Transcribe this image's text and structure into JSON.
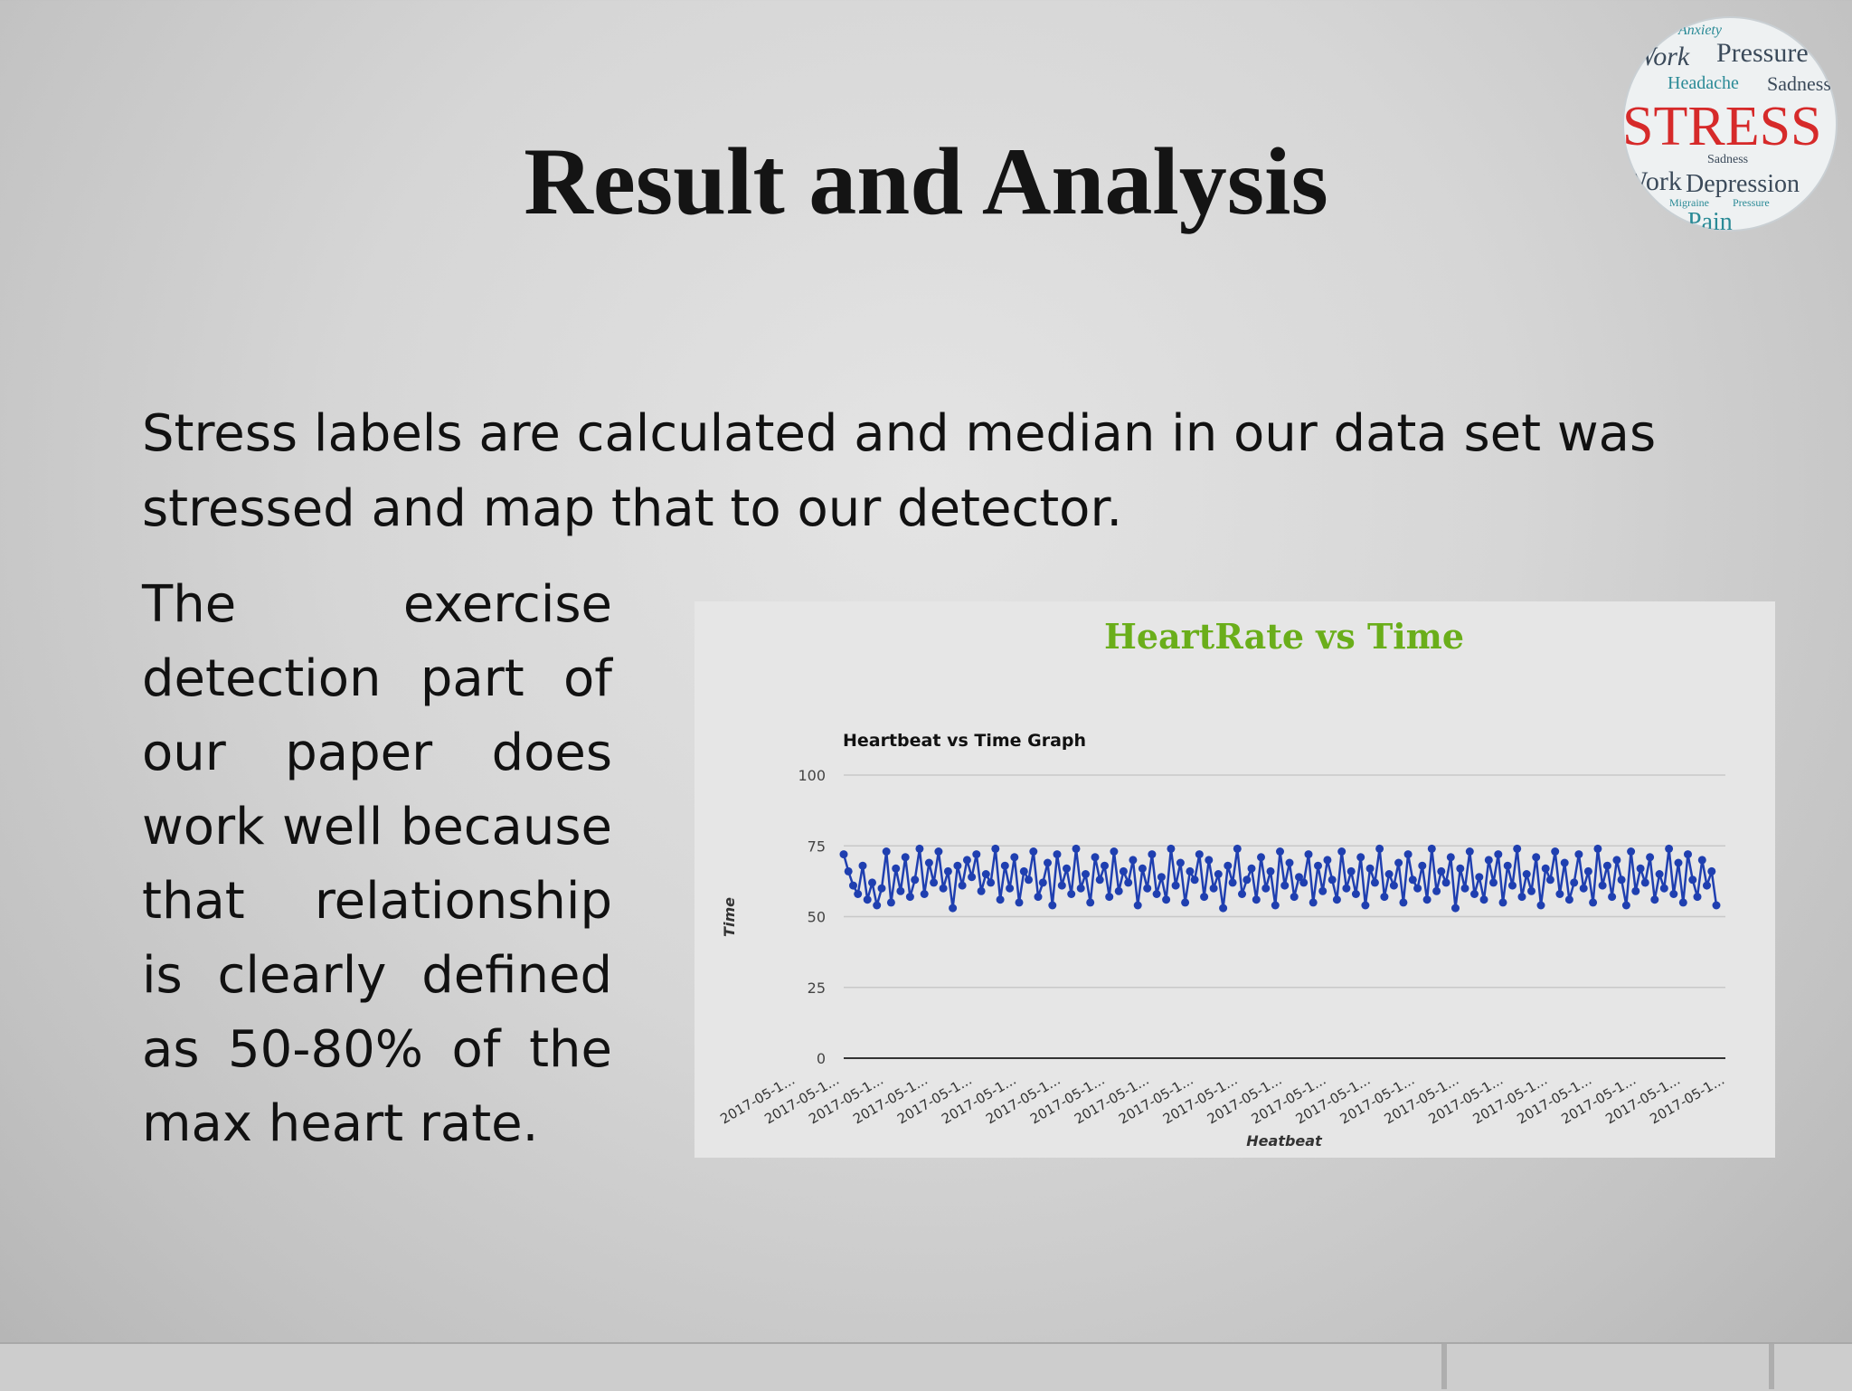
{
  "slide": {
    "title": "Result and Analysis",
    "intro_text": "Stress labels are  calculated and median in our data set was stressed and map that to our detector.",
    "side_text": "The exercise detection part of our paper does work well because that relationship is clearly defined as 50-80% of the max heart rate."
  },
  "logo": {
    "main_word": "STRESS",
    "words": [
      "Work",
      "Pressure",
      "Headache",
      "Sadness",
      "Work",
      "Depression",
      "Sadness",
      "Migraine",
      "Pressure",
      "Pain",
      "Anxiety"
    ],
    "colors": {
      "main": "#d62a2a",
      "teal": "#2a8a96",
      "dark": "#3b4a5a"
    }
  },
  "chart_data": {
    "type": "line",
    "banner_title": "HeartRate vs Time",
    "title": "Heartbeat vs Time Graph",
    "xlabel": "Heatbeat",
    "ylabel": "Time",
    "ylim": [
      0,
      100
    ],
    "yticks": [
      0,
      25,
      50,
      75,
      100
    ],
    "xtick_labels": [
      "2017-05-1...",
      "2017-05-1...",
      "2017-05-1...",
      "2017-05-1...",
      "2017-05-1...",
      "2017-05-1...",
      "2017-05-1...",
      "2017-05-1...",
      "2017-05-1...",
      "2017-05-1...",
      "2017-05-1...",
      "2017-05-1...",
      "2017-05-1...",
      "2017-05-1...",
      "2017-05-1...",
      "2017-05-1...",
      "2017-05-1...",
      "2017-05-1...",
      "2017-05-1...",
      "2017-05-1...",
      "2017-05-1...",
      "2017-05-1..."
    ],
    "grid": true,
    "legend": "none",
    "colors": {
      "series": "#1f3fb0",
      "banner_title": "#6aae1a",
      "grid": "#c8c8c8"
    },
    "series": [
      {
        "values": [
          72,
          66,
          61,
          58,
          68,
          56,
          62,
          54,
          60,
          73,
          55,
          67,
          59,
          71,
          57,
          63,
          74,
          58,
          69,
          62,
          73,
          60,
          66,
          53,
          68,
          61,
          70,
          64,
          72,
          59,
          65,
          62,
          74,
          56,
          68,
          60,
          71,
          55,
          66,
          63,
          73,
          57,
          62,
          69,
          54,
          72,
          61,
          67,
          58,
          74,
          60,
          65,
          55,
          71,
          63,
          68,
          57,
          73,
          59,
          66,
          62,
          70,
          54,
          67,
          60,
          72,
          58,
          64,
          56,
          74,
          61,
          69,
          55,
          66,
          63,
          72,
          57,
          70,
          60,
          65,
          53,
          68,
          62,
          74,
          58,
          63,
          67,
          56,
          71,
          60,
          66,
          54,
          73,
          61,
          69,
          57,
          64,
          62,
          72,
          55,
          68,
          59,
          70,
          63,
          56,
          73,
          60,
          66,
          58,
          71,
          54,
          67,
          62,
          74,
          57,
          65,
          61,
          69,
          55,
          72,
          63,
          60,
          68,
          56,
          74,
          59,
          66,
          62,
          71,
          53,
          67,
          60,
          73,
          58,
          64,
          56,
          70,
          62,
          72,
          55,
          68,
          61,
          74,
          57,
          65,
          59,
          71,
          54,
          67,
          63,
          73,
          58,
          69,
          56,
          62,
          72,
          60,
          66,
          55,
          74,
          61,
          68,
          57,
          70,
          63,
          54,
          73,
          59,
          67,
          62,
          71,
          56,
          65,
          60,
          74,
          58,
          69,
          55,
          72,
          63,
          57,
          70,
          61,
          66,
          54
        ]
      }
    ]
  }
}
